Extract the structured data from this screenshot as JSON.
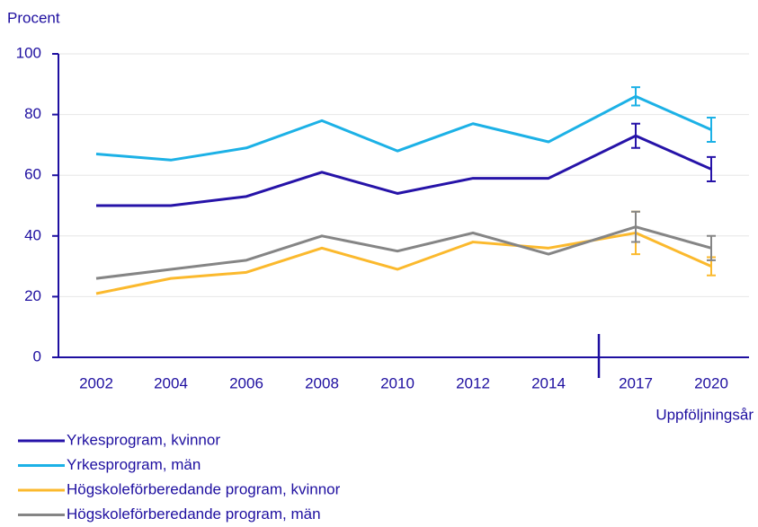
{
  "chart_data": {
    "type": "line",
    "y_label": "Procent",
    "x_label": "Uppföljningsår",
    "categories": [
      "2002",
      "2004",
      "2006",
      "2008",
      "2010",
      "2012",
      "2014",
      "2017",
      "2020"
    ],
    "series": [
      {
        "name": "Yrkesprogram, kvinnor",
        "color": "#2613a8",
        "values": [
          50,
          50,
          53,
          61,
          54,
          59,
          59,
          73,
          62
        ],
        "errors": [
          null,
          null,
          null,
          null,
          null,
          null,
          null,
          4,
          4
        ]
      },
      {
        "name": "Yrkesprogram, män",
        "color": "#1cb1e6",
        "values": [
          67,
          65,
          69,
          78,
          68,
          77,
          71,
          86,
          75
        ],
        "errors": [
          null,
          null,
          null,
          null,
          null,
          null,
          null,
          3,
          4
        ]
      },
      {
        "name": "Högskoleförberedande program, kvinnor",
        "color": "#fbb92d",
        "values": [
          21,
          26,
          28,
          36,
          29,
          38,
          36,
          41,
          30
        ],
        "errors": [
          null,
          null,
          null,
          null,
          null,
          null,
          null,
          7,
          3
        ]
      },
      {
        "name": "Högskoleförberedande program, män",
        "color": "#858585",
        "values": [
          26,
          29,
          32,
          40,
          35,
          41,
          34,
          43,
          36
        ],
        "errors": [
          null,
          null,
          null,
          null,
          null,
          null,
          null,
          5,
          4
        ]
      }
    ],
    "ylim": [
      0,
      100
    ],
    "yticks": [
      0,
      20,
      40,
      60,
      80,
      100
    ],
    "grid": true
  }
}
